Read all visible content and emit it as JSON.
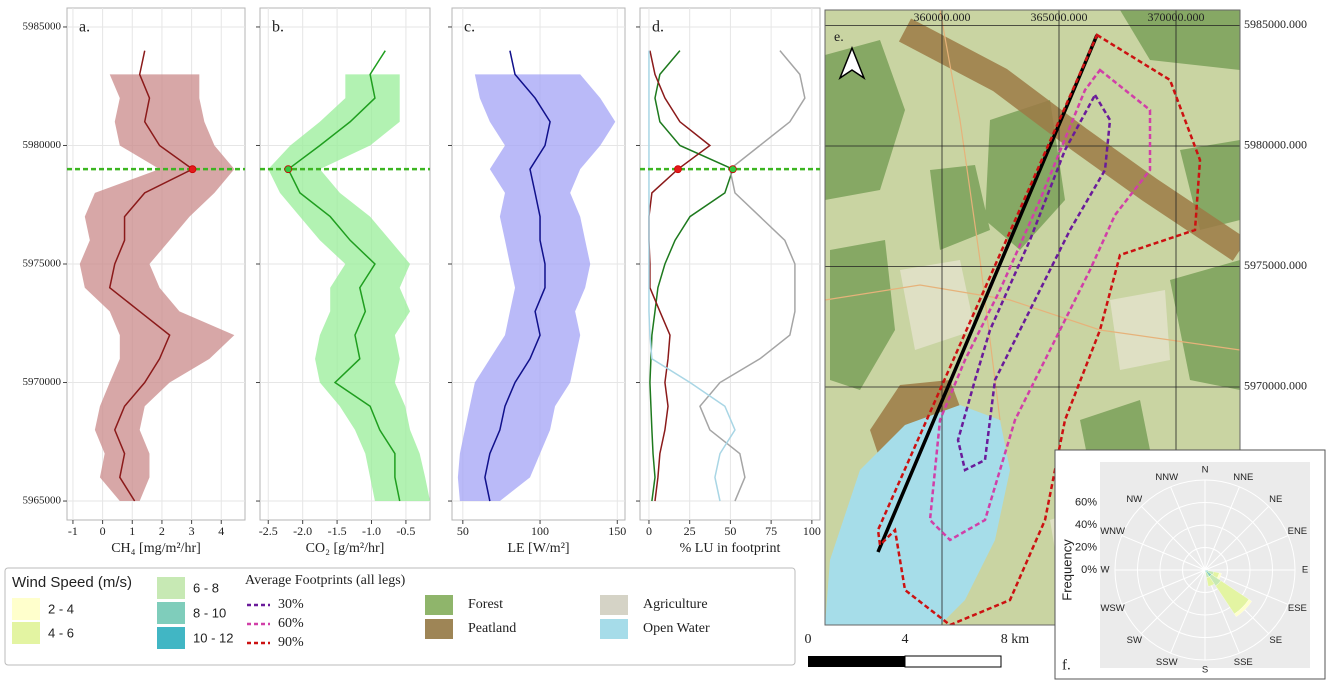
{
  "chart_data": [
    {
      "type": "profile",
      "label": "a.",
      "x_label": "CH₄ [mg/m²/hr]",
      "xlim": [
        -1.2,
        4.8
      ],
      "xticks": [
        -1,
        0,
        1,
        2,
        3,
        4
      ],
      "ylim": [
        5964200,
        5985800
      ],
      "yticks": [
        5965000,
        5970000,
        5975000,
        5980000,
        5985000
      ],
      "show_yticklabels": true,
      "grid": true,
      "hline": 5979000,
      "hline_color": "#3cb521",
      "y": [
        5965000,
        5966000,
        5967000,
        5968000,
        5969000,
        5970000,
        5971000,
        5972000,
        5973000,
        5974000,
        5975000,
        5976000,
        5977000,
        5978000,
        5979000,
        5980000,
        5981000,
        5982000,
        5983000,
        5984000
      ],
      "series": [
        {
          "color": "#8b1a1a",
          "band_color": "#c98a8a",
          "highlight": true,
          "values": [
            1.08,
            0.58,
            0.74,
            0.41,
            0.74,
            1.42,
            1.92,
            2.26,
            1.25,
            0.24,
            0.41,
            0.74,
            0.74,
            1.42,
            3.03,
            1.92,
            1.42,
            1.58,
            1.25,
            1.42
          ],
          "lower": [
            0.58,
            -0.09,
            0.07,
            -0.26,
            -0.09,
            0.24,
            0.58,
            0.58,
            0.24,
            -0.6,
            -0.77,
            -0.43,
            -0.6,
            -0.26,
            1.92,
            0.58,
            0.41,
            0.58,
            0.24,
            null
          ],
          "upper": [
            1.25,
            1.58,
            1.58,
            1.25,
            1.42,
            2.26,
            3.6,
            4.44,
            2.59,
            1.92,
            1.58,
            2.26,
            2.93,
            3.77,
            4.44,
            3.77,
            3.43,
            3.26,
            3.26,
            null
          ]
        }
      ]
    },
    {
      "type": "profile",
      "label": "b.",
      "x_label": "CO₂ [g/m²/hr]",
      "xlim": [
        -2.62,
        -0.15
      ],
      "xticks": [
        -2.5,
        {
          "value": -2,
          "label": "-2.0"
        },
        -1.5,
        {
          "value": -1,
          "label": "-1.0"
        },
        -0.5
      ],
      "ylim": [
        5964200,
        5985800
      ],
      "yticks": [
        5965000,
        5970000,
        5975000,
        5980000,
        5985000
      ],
      "show_yticklabels": false,
      "grid": true,
      "hline": 5979000,
      "hline_color": "#3cb521",
      "y": [
        5965000,
        5966000,
        5967000,
        5968000,
        5969000,
        5970000,
        5971000,
        5972000,
        5973000,
        5974000,
        5975000,
        5976000,
        5977000,
        5978000,
        5979000,
        5980000,
        5981000,
        5982000,
        5983000,
        5984000
      ],
      "series": [
        {
          "color": "#1f9e1f",
          "band_color": "#98ee98",
          "highlight": true,
          "values": [
            -0.59,
            -0.66,
            -0.66,
            -0.88,
            -1.02,
            -1.53,
            -1.17,
            -1.24,
            -1.09,
            -1.17,
            -0.95,
            -1.31,
            -1.6,
            -2.04,
            -2.21,
            -1.75,
            -1.31,
            -0.95,
            -1.02,
            -0.8
          ],
          "lower": [
            -0.95,
            -1.02,
            -1.09,
            -1.24,
            -1.46,
            -1.75,
            -1.82,
            -1.75,
            -1.6,
            -1.6,
            -1.38,
            -1.75,
            -2.04,
            -2.33,
            -2.5,
            -2.18,
            -1.75,
            -1.38,
            -1.38,
            null
          ],
          "upper": [
            -0.15,
            -0.22,
            -0.3,
            -0.44,
            -0.51,
            -0.66,
            -0.59,
            -0.66,
            -0.44,
            -0.59,
            -0.44,
            -0.73,
            -1.02,
            -1.46,
            -1.75,
            -1.02,
            -0.59,
            -0.59,
            -0.59,
            null
          ]
        }
      ]
    },
    {
      "type": "profile",
      "label": "c.",
      "x_label": "LE [W/m²]",
      "xlim": [
        43,
        155
      ],
      "xticks": [
        50,
        100,
        150
      ],
      "ylim": [
        5964200,
        5985800
      ],
      "yticks": [
        5965000,
        5970000,
        5975000,
        5980000,
        5985000
      ],
      "show_yticklabels": false,
      "grid": true,
      "y": [
        5965000,
        5966000,
        5967000,
        5968000,
        5969000,
        5970000,
        5971000,
        5972000,
        5973000,
        5974000,
        5975000,
        5976000,
        5977000,
        5978000,
        5979000,
        5980000,
        5981000,
        5982000,
        5983000,
        5984000
      ],
      "series": [
        {
          "color": "#10108b",
          "band_color": "#a3a3f5",
          "highlight": false,
          "values": [
            67.5,
            64.3,
            67.5,
            74,
            77.3,
            83.8,
            93.5,
            100,
            96.8,
            103.2,
            103.2,
            100,
            100,
            96.8,
            93.5,
            103.2,
            106.5,
            96.8,
            83.8,
            80.5
          ],
          "lower": [
            48.1,
            46.8,
            48.1,
            51.3,
            54.5,
            57.8,
            67.5,
            77.3,
            80.5,
            83.8,
            80.5,
            77.3,
            74,
            77.3,
            67.5,
            77.3,
            67.5,
            61,
            57.8,
            null
          ],
          "upper": [
            74,
            93.5,
            100,
            106.5,
            109.7,
            119.5,
            122.7,
            126,
            122.7,
            129.2,
            132.5,
            129.2,
            126,
            119.5,
            126,
            139,
            148.7,
            139,
            126,
            null
          ]
        }
      ]
    },
    {
      "type": "profile",
      "label": "d.",
      "x_label": "% LU in footprint",
      "xlim": [
        -5.5,
        105
      ],
      "xticks": [
        0,
        25,
        50,
        75,
        100
      ],
      "ylim": [
        5964200,
        5985800
      ],
      "yticks": [
        5965000,
        5970000,
        5975000,
        5980000,
        5985000
      ],
      "show_yticklabels": false,
      "grid": true,
      "hline": 5979000,
      "hline_color": "#3cb521",
      "y": [
        5965000,
        5966000,
        5967000,
        5968000,
        5969000,
        5970000,
        5971000,
        5972000,
        5973000,
        5974000,
        5975000,
        5976000,
        5977000,
        5978000,
        5979000,
        5980000,
        5981000,
        5982000,
        5983000,
        5984000
      ],
      "series": [
        {
          "name": "Forest",
          "color": "#1e7a1e",
          "map_color": "#8fb56b",
          "highlight": true,
          "values": [
            1.8,
            3.7,
            2.5,
            1.8,
            1.2,
            0.6,
            1.2,
            1.8,
            3.7,
            5.5,
            9.8,
            16,
            25.2,
            46.6,
            51.5,
            19,
            6.7,
            3.7,
            6.7,
            19
          ]
        },
        {
          "name": "Peatland",
          "color": "#8b1a1a",
          "map_color": "#9e8556",
          "highlight": true,
          "values": [
            3.7,
            5.5,
            6.7,
            9.8,
            11.7,
            9.8,
            11.7,
            12.9,
            6.7,
            0.6,
            0.6,
            0,
            0,
            1.8,
            17.8,
            37.4,
            19,
            9.8,
            3.7,
            0.6
          ]
        },
        {
          "name": "Agriculture",
          "color": "#a5a5a5",
          "map_color": "#d5d3c6",
          "highlight": false,
          "values": [
            52.8,
            58.9,
            55.8,
            37.4,
            31.3,
            43.6,
            68.1,
            86.5,
            89.6,
            89.6,
            89.6,
            83.4,
            68.1,
            52.8,
            49.7,
            68.1,
            86.5,
            95.7,
            92.6,
            80.4
          ]
        },
        {
          "name": "Open Water",
          "color": "#a9d6e5",
          "map_color": "#a6dce9",
          "highlight": false,
          "values": [
            43.6,
            40.5,
            43.6,
            52.8,
            46.6,
            25.2,
            1.8,
            0.6,
            0,
            0,
            0,
            0,
            0,
            0,
            0,
            0,
            0,
            0,
            0,
            0
          ]
        }
      ]
    },
    {
      "type": "windrose",
      "label": "f.",
      "y_label": "Frequency",
      "legend_title": "Wind Speed (m/s)",
      "categories": [
        "N",
        "NNE",
        "NE",
        "ENE",
        "E",
        "ESE",
        "SE",
        "SSE",
        "S",
        "SSW",
        "SW",
        "WSW",
        "W",
        "WNW",
        "NW",
        "NNW"
      ],
      "ylim": [
        0,
        80
      ],
      "yticks": [
        {
          "value": 0,
          "label": "0%"
        },
        {
          "value": 20,
          "label": "20%"
        },
        {
          "value": 40,
          "label": "40%"
        },
        {
          "value": 60,
          "label": "60%"
        }
      ],
      "series": [
        {
          "name": "2 - 4",
          "color": "#ffffcc",
          "values": [
            0,
            0,
            0,
            0,
            0,
            2,
            3,
            0,
            0,
            0,
            0,
            0,
            0,
            0,
            0,
            0
          ]
        },
        {
          "name": "4 - 6",
          "color": "#e3f4a2",
          "values": [
            0,
            0,
            0,
            0,
            0,
            5,
            30,
            8,
            0,
            0,
            0,
            0,
            0,
            0,
            0,
            0
          ]
        },
        {
          "name": "6 - 8",
          "color": "#c7e9b4",
          "values": [
            0,
            0,
            0,
            0,
            0,
            5,
            10,
            5,
            0,
            0,
            0,
            0,
            0,
            0,
            0,
            0
          ]
        },
        {
          "name": "8 - 10",
          "color": "#7fcdbb",
          "values": [
            0,
            0,
            0,
            0,
            0,
            3,
            5,
            2,
            0,
            0,
            0,
            0,
            0,
            0,
            0,
            0
          ]
        },
        {
          "name": "10 - 12",
          "color": "#41b6c4",
          "values": [
            0,
            0,
            0,
            0,
            0,
            0,
            2,
            0,
            0,
            0,
            0,
            0,
            0,
            0,
            0,
            0
          ]
        }
      ]
    }
  ],
  "map": {
    "label": "e.",
    "xlim": [
      355000,
      372735
    ],
    "ylim": [
      5960124,
      5985643
    ],
    "xticks": [
      {
        "value": 360000,
        "label": "360000.000"
      },
      {
        "value": 365000,
        "label": "365000.000"
      },
      {
        "value": 370000,
        "label": "370000.000"
      }
    ],
    "yticks": [
      {
        "value": 5985000,
        "label": "5985000.000"
      },
      {
        "value": 5980000,
        "label": "5980000.000"
      },
      {
        "value": 5975000,
        "label": "5975000.000"
      },
      {
        "value": 5970000,
        "label": "5970000.000"
      }
    ],
    "footprints": {
      "title": "Average Footprints (all legs)",
      "levels": [
        {
          "label": "30%",
          "color": "#6a1b9a"
        },
        {
          "label": "60%",
          "color": "#d13fa8"
        },
        {
          "label": "90%",
          "color": "#cc1111"
        }
      ]
    },
    "scale_bar": [
      "0",
      "4",
      "8 km"
    ]
  }
}
